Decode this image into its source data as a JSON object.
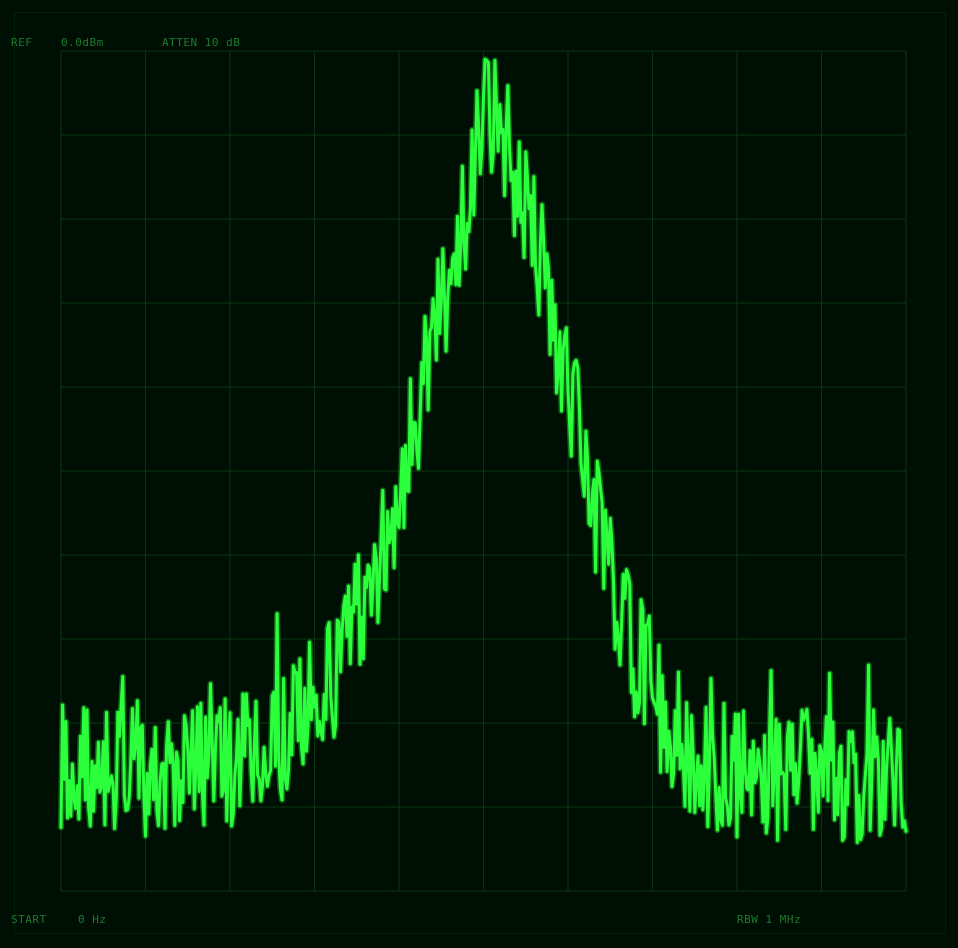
{
  "header": {
    "ref_label": "REF",
    "ref_value": "0.0dBm",
    "atten": "ATTEN 10 dB"
  },
  "footer": {
    "start_label": "START",
    "start_value": "0 Hz",
    "rbw": "RBW 1 MHz"
  },
  "colors": {
    "background": "#000f03",
    "grid": "#0a3512",
    "trace_bright": "#2cff3c",
    "trace_dim": "#13b322",
    "text": "#1c7a2c"
  },
  "chart_data": {
    "type": "line",
    "title": "",
    "xlabel": "",
    "ylabel": "",
    "grid": true,
    "x_divisions": 10,
    "y_divisions": 10,
    "xlim": [
      0,
      10
    ],
    "ylim": [
      -100,
      0
    ],
    "reference_level_dbm": 0.0,
    "attenuation_db": 10,
    "rbw": "1 MHz",
    "start_frequency": "0 Hz",
    "series": [
      {
        "name": "trace",
        "peak_x": 5.05,
        "peak_level_dbm": -6,
        "noise_floor_dbm": -85,
        "noise_spread_db": 8,
        "x": [
          0.0,
          0.4,
          0.8,
          1.2,
          1.6,
          2.0,
          2.4,
          2.8,
          3.2,
          3.6,
          4.0,
          4.4,
          4.8,
          5.05,
          5.3,
          5.6,
          6.0,
          6.4,
          6.8,
          7.2,
          7.6,
          8.0,
          8.4,
          8.8,
          9.2,
          9.6,
          10.0
        ],
        "y": [
          -85,
          -86,
          -85,
          -86,
          -85,
          -85,
          -83,
          -80,
          -75,
          -65,
          -52,
          -35,
          -18,
          -6,
          -12,
          -22,
          -40,
          -58,
          -72,
          -80,
          -85,
          -86,
          -86,
          -86,
          -87,
          -86,
          -86
        ]
      }
    ]
  }
}
